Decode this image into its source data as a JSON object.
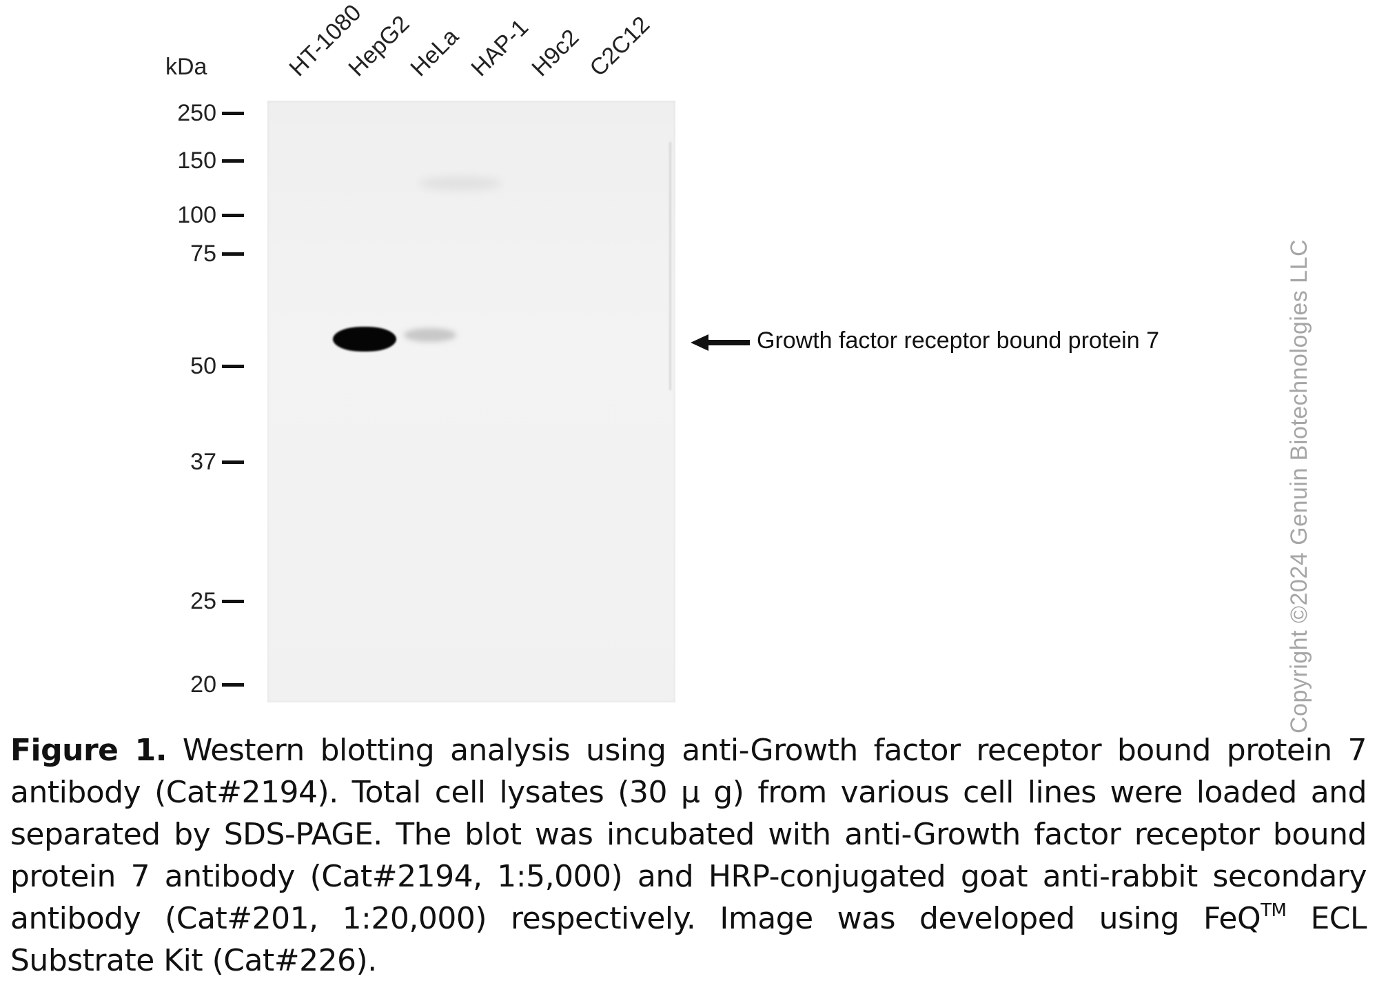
{
  "figure": {
    "kda_label": "kDa",
    "lanes": [
      "HT-1080",
      "HepG2",
      "HeLa",
      "HAP-1",
      "H9c2",
      "C2C12"
    ],
    "markers": [
      "250",
      "150",
      "100",
      "75",
      "50",
      "37",
      "25",
      "20"
    ],
    "band_label": "Growth factor receptor bound protein 7",
    "copyright": "Copyright ©2024 Genuin Biotechnologies LLC"
  },
  "caption": {
    "lead": "Figure 1.",
    "part1": " Western blotting analysis using anti-Growth factor receptor bound protein 7 antibody (Cat#2194). Total cell lysates (30 μ g) from various cell lines were loaded and separated by SDS-PAGE. The blot was incubated with anti-Growth factor receptor bound protein 7 antibody (Cat#2194, 1:5,000) and HRP-conjugated goat anti-rabbit secondary antibody (Cat#201, 1:20,000) respectively. Image was developed using FeQ",
    "tm": "TM",
    "part2": " ECL Substrate Kit (Cat#226)."
  }
}
